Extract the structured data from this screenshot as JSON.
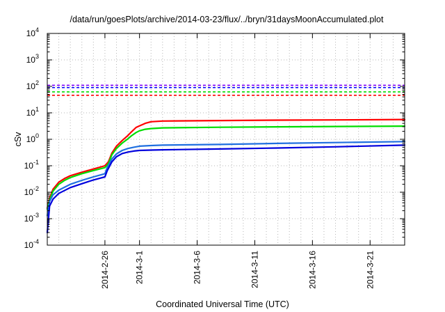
{
  "chart_data": {
    "type": "line",
    "title": "/data/run/goesPlots/archive/2014-03-23/flux/../bryn/31daysMoonAccumulated.plot",
    "xlabel": "Coordinated Universal Time (UTC)",
    "ylabel": "cSv",
    "y_scale": "log",
    "ylim": [
      0.0001,
      10000
    ],
    "y_ticks": [
      {
        "base": "10",
        "exp": "-4"
      },
      {
        "base": "10",
        "exp": "-3"
      },
      {
        "base": "10",
        "exp": "-2"
      },
      {
        "base": "10",
        "exp": "-1"
      },
      {
        "base": "10",
        "exp": "0"
      },
      {
        "base": "10",
        "exp": "1"
      },
      {
        "base": "10",
        "exp": "2"
      },
      {
        "base": "10",
        "exp": "3"
      },
      {
        "base": "10",
        "exp": "4"
      }
    ],
    "x_range_days": [
      0,
      31
    ],
    "x_ticks": [
      {
        "label": "2014-2-26",
        "day": 5
      },
      {
        "label": "2014-3-1",
        "day": 8
      },
      {
        "label": "2014-3-6",
        "day": 13
      },
      {
        "label": "2014-3-11",
        "day": 18
      },
      {
        "label": "2014-3-16",
        "day": 23
      },
      {
        "label": "2014-3-21",
        "day": 28
      }
    ],
    "reference_lines": [
      {
        "color": "#7f00ff",
        "value": 110
      },
      {
        "color": "#0000ff",
        "value": 90
      },
      {
        "color": "#00dd00",
        "value": 62
      },
      {
        "color": "#ff0000",
        "value": 46
      }
    ],
    "series": [
      {
        "name": "red",
        "color": "#ff0000",
        "x": [
          0,
          0.2,
          0.5,
          1,
          1.5,
          2,
          3,
          4,
          5,
          5.3,
          5.6,
          6,
          6.5,
          7,
          7.3,
          7.7,
          8,
          8.5,
          9,
          10,
          15,
          20,
          25,
          31
        ],
        "y": [
          0.0025,
          0.006,
          0.013,
          0.024,
          0.033,
          0.042,
          0.057,
          0.075,
          0.1,
          0.14,
          0.3,
          0.55,
          0.9,
          1.4,
          1.9,
          2.8,
          3.2,
          4.0,
          4.6,
          4.9,
          5.1,
          5.3,
          5.4,
          5.6
        ]
      },
      {
        "name": "green",
        "color": "#00dd00",
        "x": [
          0,
          0.2,
          0.5,
          1,
          1.5,
          2,
          3,
          4,
          5,
          5.3,
          5.6,
          6,
          6.5,
          7,
          7.3,
          7.7,
          8,
          8.5,
          9,
          10,
          15,
          20,
          25,
          31
        ],
        "y": [
          0.0023,
          0.005,
          0.011,
          0.02,
          0.028,
          0.036,
          0.05,
          0.066,
          0.085,
          0.12,
          0.26,
          0.45,
          0.72,
          1.05,
          1.35,
          1.8,
          2.1,
          2.4,
          2.55,
          2.7,
          2.85,
          2.95,
          3.05,
          3.15
        ]
      },
      {
        "name": "cyan-blue",
        "color": "#1f6fe0",
        "x": [
          0,
          0.2,
          0.5,
          1,
          2,
          3,
          4,
          5,
          5.2,
          5.6,
          6,
          6.5,
          7,
          7.5,
          8,
          9,
          10,
          15,
          20,
          25,
          31
        ],
        "y": [
          0.0013,
          0.0045,
          0.008,
          0.012,
          0.02,
          0.028,
          0.038,
          0.05,
          0.085,
          0.18,
          0.28,
          0.38,
          0.45,
          0.5,
          0.55,
          0.58,
          0.6,
          0.64,
          0.7,
          0.75,
          0.82
        ]
      },
      {
        "name": "blue",
        "color": "#0000dd",
        "x": [
          0,
          0.2,
          0.5,
          1,
          2,
          3,
          4,
          5,
          5.2,
          5.6,
          6,
          6.5,
          7,
          7.5,
          8,
          9,
          10,
          15,
          20,
          25,
          31
        ],
        "y": [
          0.0003,
          0.003,
          0.0055,
          0.009,
          0.015,
          0.021,
          0.029,
          0.038,
          0.065,
          0.14,
          0.22,
          0.29,
          0.33,
          0.36,
          0.38,
          0.39,
          0.4,
          0.43,
          0.47,
          0.52,
          0.6
        ]
      }
    ]
  }
}
